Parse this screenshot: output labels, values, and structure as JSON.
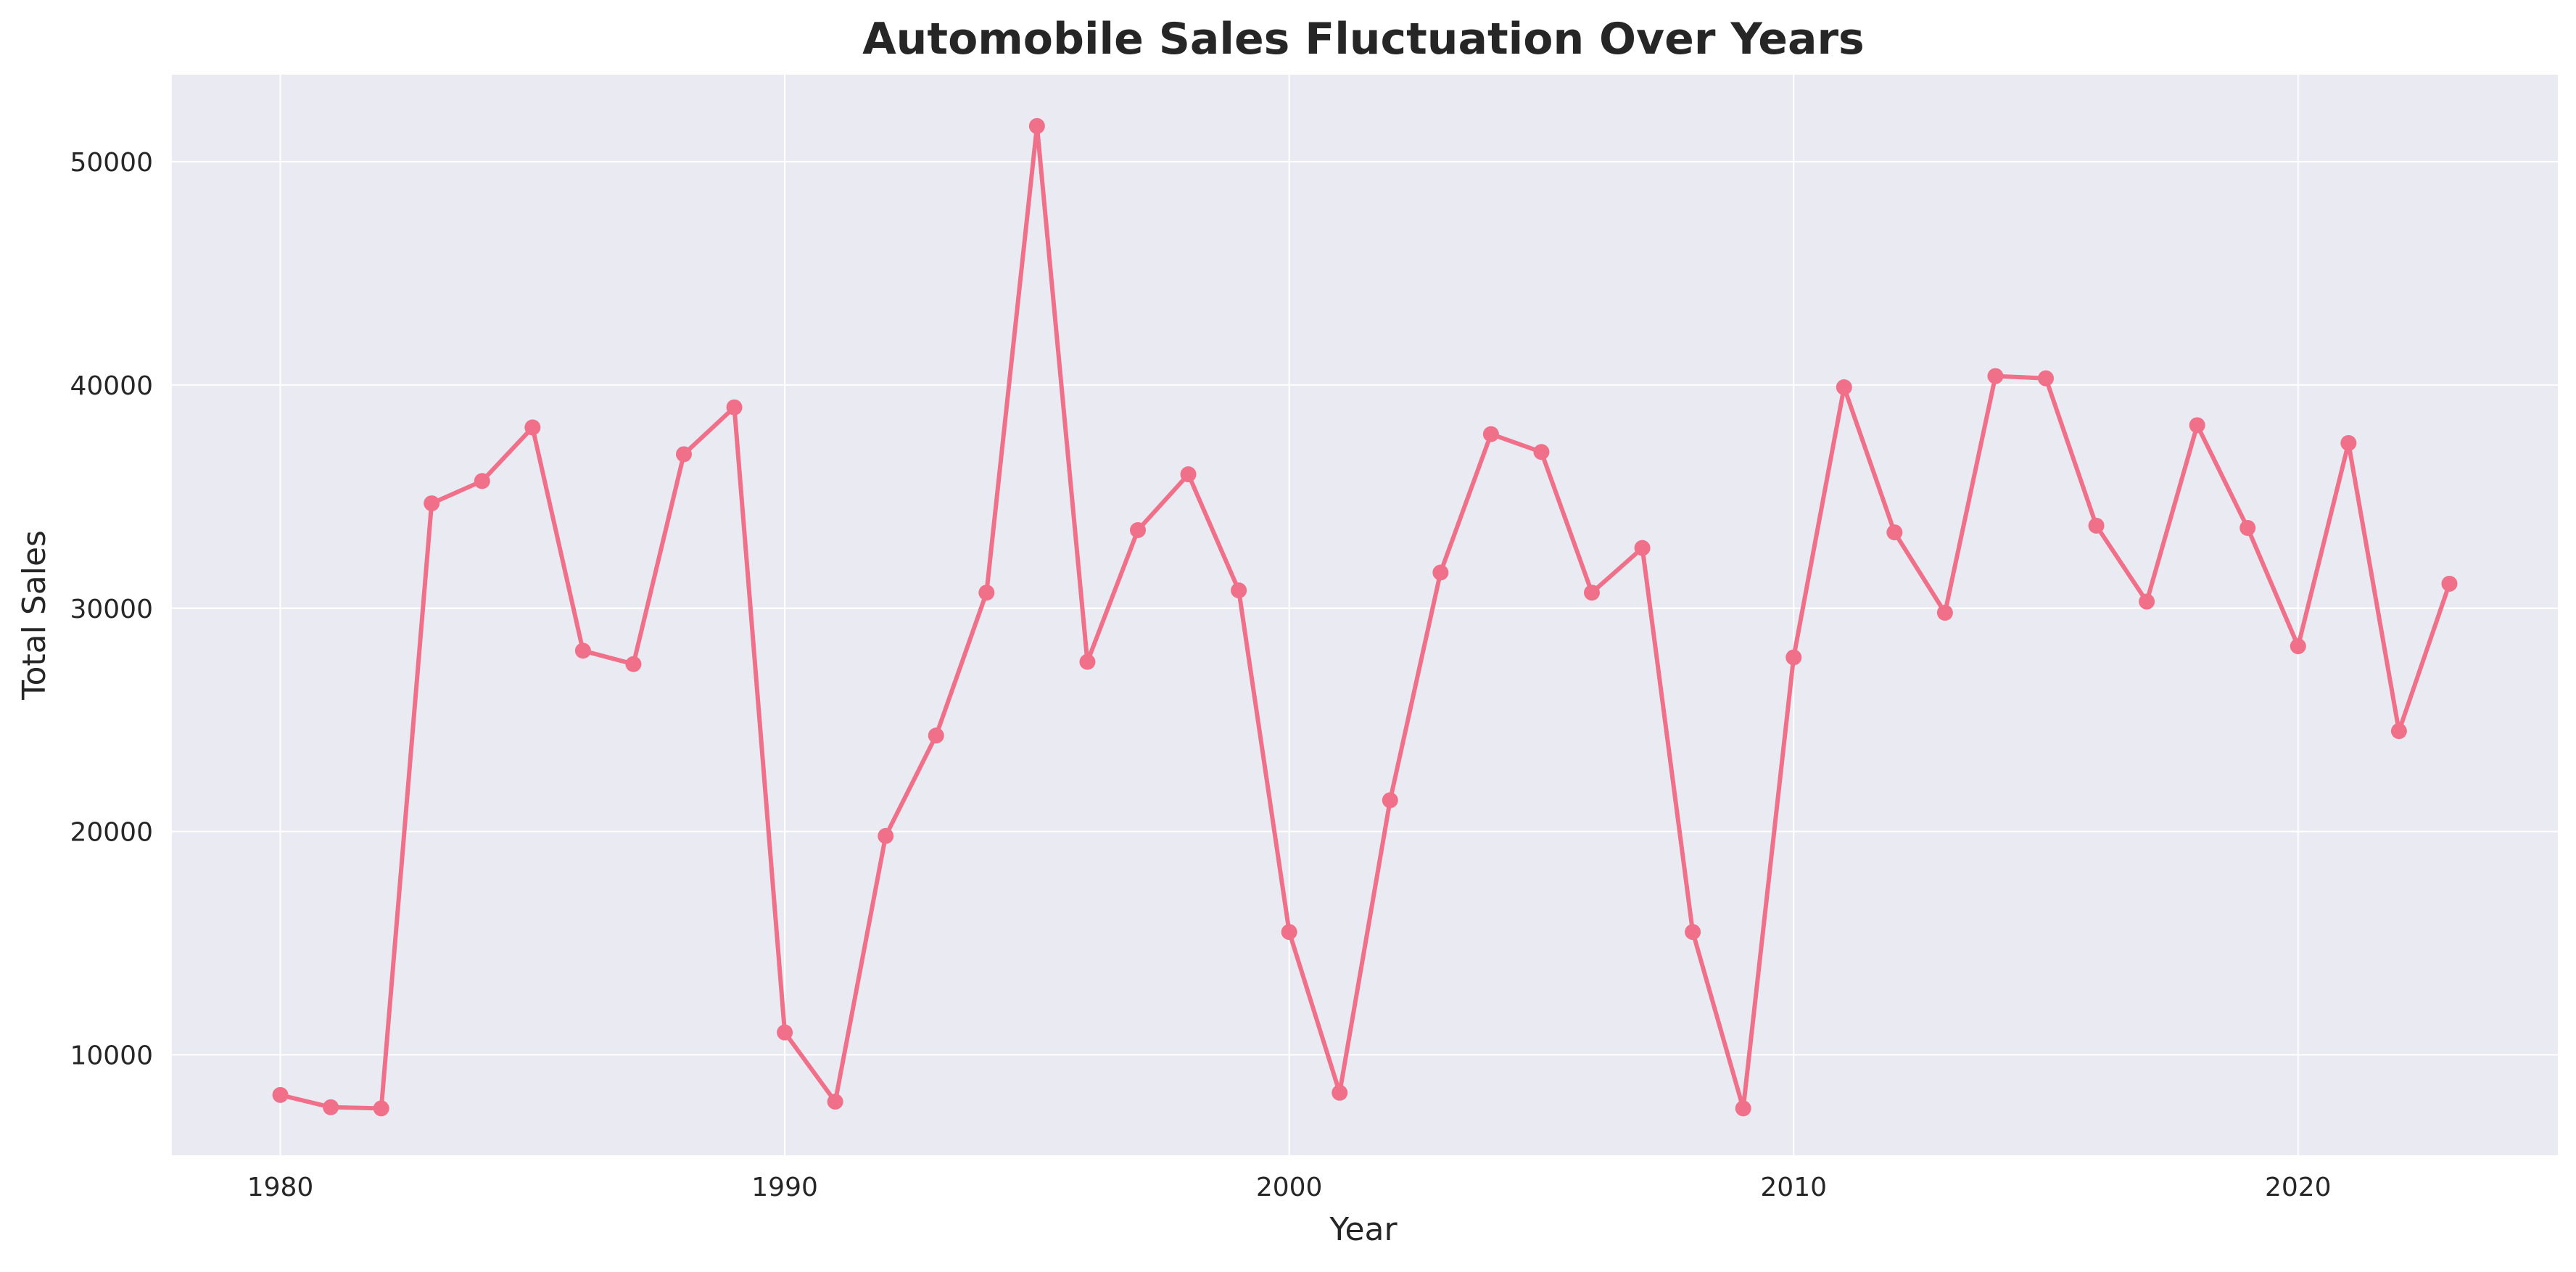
{
  "chart_data": {
    "type": "line",
    "title": "Automobile Sales Fluctuation Over Years",
    "xlabel": "Year",
    "ylabel": "Total Sales",
    "xlim": [
      1977.85,
      2025.15
    ],
    "ylim": [
      5500,
      53900
    ],
    "x_ticks": [
      1980,
      1990,
      2000,
      2010,
      2020
    ],
    "y_ticks": [
      10000,
      20000,
      30000,
      40000,
      50000
    ],
    "grid": true,
    "legend": "none",
    "colors": {
      "line": "#f0708a",
      "plot_background": "#eaeaf2",
      "grid": "#ffffff",
      "text": "#262626"
    },
    "series": [
      {
        "x": [
          1980,
          1981,
          1982,
          1983,
          1984,
          1985,
          1986,
          1987,
          1988,
          1989,
          1990,
          1991,
          1992,
          1993,
          1994,
          1995,
          1996,
          1997,
          1998,
          1999,
          2000,
          2001,
          2002,
          2003,
          2004,
          2005,
          2006,
          2007,
          2008,
          2009,
          2010,
          2011,
          2012,
          2013,
          2014,
          2015,
          2016,
          2017,
          2018,
          2019,
          2020,
          2021,
          2022,
          2023
        ],
        "values": [
          8200,
          7650,
          7600,
          34700,
          35700,
          38100,
          28100,
          27500,
          36900,
          39000,
          11000,
          7900,
          19800,
          24300,
          30700,
          51600,
          27600,
          33500,
          36000,
          30800,
          15500,
          8300,
          21400,
          31600,
          37800,
          37000,
          30700,
          32700,
          15500,
          7600,
          27800,
          39900,
          33400,
          29800,
          40400,
          40300,
          33700,
          30300,
          38200,
          33600,
          28300,
          37400,
          24500,
          31100
        ]
      }
    ]
  }
}
